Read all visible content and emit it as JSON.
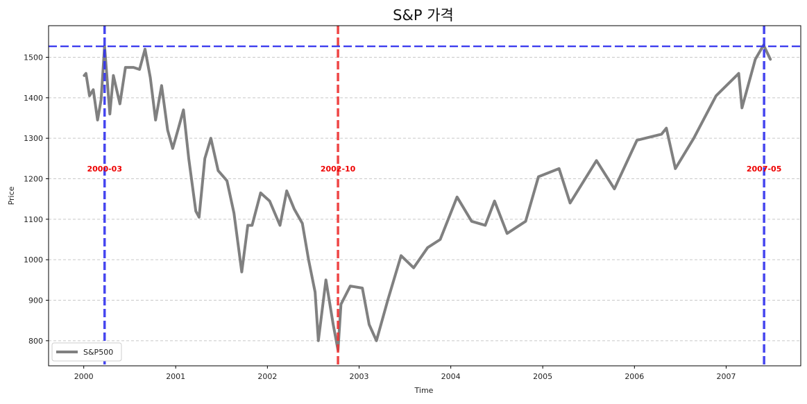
{
  "chart_data": {
    "type": "line",
    "title": "S&P 가격",
    "xlabel": "Time",
    "ylabel": "Price",
    "xlim": [
      "1999-08-14",
      "2007-10-25"
    ],
    "ylim": [
      738,
      1578
    ],
    "x_ticks": [
      "2000",
      "2001",
      "2002",
      "2003",
      "2004",
      "2005",
      "2006",
      "2007"
    ],
    "y_ticks": [
      800,
      900,
      1000,
      1100,
      1200,
      1300,
      1400,
      1500
    ],
    "grid": "y-dashed",
    "legend_position": "lower-left",
    "series": [
      {
        "name": "S&P500",
        "color": "#808080",
        "points": [
          [
            "2000-01-03",
            1455
          ],
          [
            "2000-01-10",
            1460
          ],
          [
            "2000-01-24",
            1405
          ],
          [
            "2000-02-08",
            1420
          ],
          [
            "2000-02-25",
            1345
          ],
          [
            "2000-03-10",
            1395
          ],
          [
            "2000-03-24",
            1527
          ],
          [
            "2000-04-14",
            1360
          ],
          [
            "2000-04-28",
            1455
          ],
          [
            "2000-05-24",
            1385
          ],
          [
            "2000-06-15",
            1475
          ],
          [
            "2000-07-17",
            1475
          ],
          [
            "2000-08-10",
            1470
          ],
          [
            "2000-09-01",
            1520
          ],
          [
            "2000-09-22",
            1450
          ],
          [
            "2000-10-13",
            1345
          ],
          [
            "2000-11-06",
            1430
          ],
          [
            "2000-11-30",
            1320
          ],
          [
            "2000-12-20",
            1275
          ],
          [
            "2001-01-12",
            1325
          ],
          [
            "2001-02-01",
            1370
          ],
          [
            "2001-02-22",
            1250
          ],
          [
            "2001-03-22",
            1120
          ],
          [
            "2001-04-04",
            1105
          ],
          [
            "2001-04-27",
            1250
          ],
          [
            "2001-05-21",
            1300
          ],
          [
            "2001-06-19",
            1220
          ],
          [
            "2001-07-24",
            1195
          ],
          [
            "2001-08-21",
            1115
          ],
          [
            "2001-09-21",
            970
          ],
          [
            "2001-10-15",
            1085
          ],
          [
            "2001-11-01",
            1085
          ],
          [
            "2001-12-05",
            1165
          ],
          [
            "2002-01-10",
            1145
          ],
          [
            "2002-02-20",
            1085
          ],
          [
            "2002-03-19",
            1170
          ],
          [
            "2002-04-18",
            1125
          ],
          [
            "2002-05-20",
            1090
          ],
          [
            "2002-06-14",
            1000
          ],
          [
            "2002-07-10",
            920
          ],
          [
            "2002-07-23",
            800
          ],
          [
            "2002-08-22",
            950
          ],
          [
            "2002-09-20",
            840
          ],
          [
            "2002-10-09",
            777
          ],
          [
            "2002-10-21",
            890
          ],
          [
            "2002-11-27",
            935
          ],
          [
            "2003-01-14",
            930
          ],
          [
            "2003-02-10",
            840
          ],
          [
            "2003-03-11",
            800
          ],
          [
            "2003-04-25",
            900
          ],
          [
            "2003-06-17",
            1010
          ],
          [
            "2003-08-06",
            980
          ],
          [
            "2003-10-01",
            1030
          ],
          [
            "2003-11-20",
            1050
          ],
          [
            "2004-01-26",
            1155
          ],
          [
            "2004-03-24",
            1095
          ],
          [
            "2004-05-17",
            1085
          ],
          [
            "2004-06-23",
            1145
          ],
          [
            "2004-08-12",
            1065
          ],
          [
            "2004-10-25",
            1095
          ],
          [
            "2004-12-15",
            1205
          ],
          [
            "2005-03-07",
            1225
          ],
          [
            "2005-04-20",
            1140
          ],
          [
            "2005-08-03",
            1245
          ],
          [
            "2005-10-13",
            1175
          ],
          [
            "2006-01-11",
            1295
          ],
          [
            "2006-04-19",
            1310
          ],
          [
            "2006-05-08",
            1325
          ],
          [
            "2006-06-13",
            1225
          ],
          [
            "2006-08-25",
            1300
          ],
          [
            "2006-11-22",
            1405
          ],
          [
            "2007-02-20",
            1460
          ],
          [
            "2007-03-05",
            1375
          ],
          [
            "2007-04-27",
            1495
          ],
          [
            "2007-05-30",
            1530
          ],
          [
            "2007-06-26",
            1495
          ]
        ]
      }
    ],
    "reference_lines": [
      {
        "orientation": "vertical",
        "x": "2000-03-24",
        "color": "#3333ee",
        "style": "dashed"
      },
      {
        "orientation": "vertical",
        "x": "2002-10-09",
        "color": "#ee3333",
        "style": "dashed"
      },
      {
        "orientation": "vertical",
        "x": "2007-06-01",
        "color": "#3333ee",
        "style": "dashed"
      },
      {
        "orientation": "horizontal",
        "y": 1527,
        "color": "#3333ee",
        "style": "dashed"
      }
    ],
    "annotations": [
      {
        "text": "2000-03",
        "x": "2000-03-24",
        "y": 1225,
        "color": "#ee0000"
      },
      {
        "text": "2002-10",
        "x": "2002-10-09",
        "y": 1225,
        "color": "#ee0000"
      },
      {
        "text": "2007-05",
        "x": "2007-06-01",
        "y": 1225,
        "color": "#ee0000"
      }
    ]
  }
}
